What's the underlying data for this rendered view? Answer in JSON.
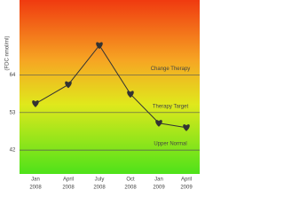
{
  "chart_data": {
    "type": "line",
    "y_label": "(FDC nmol/ml)",
    "categories": [
      [
        "Jan",
        "2008"
      ],
      [
        "April",
        "2008"
      ],
      [
        "July",
        "2008"
      ],
      [
        "Oct",
        "2008"
      ],
      [
        "Jan",
        "2009"
      ],
      [
        "April",
        "2009"
      ]
    ],
    "series": [
      {
        "color": "#333333",
        "values": [
          55.6,
          61.2,
          72.7,
          58.4,
          49.9,
          48.6
        ]
      }
    ],
    "ylim": [
      35,
      86
    ],
    "yticks": [
      42,
      53,
      64
    ],
    "reference_lines": [
      {
        "value": 64,
        "label": "Change Therapy"
      },
      {
        "value": 53,
        "label": "Therapy Target"
      },
      {
        "value": 42,
        "label": "Upper Normal"
      }
    ]
  }
}
